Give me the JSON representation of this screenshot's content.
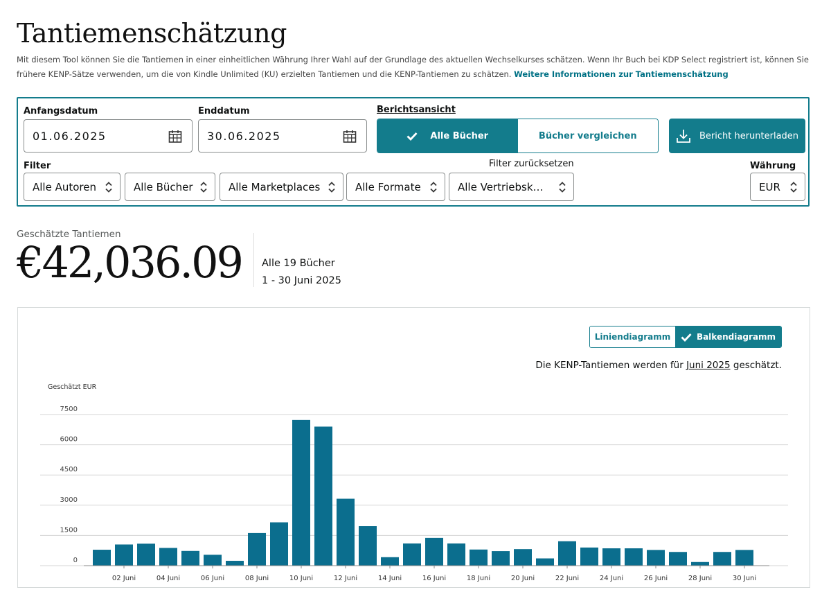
{
  "page": {
    "title": "Tantiemenschätzung",
    "intro": "Mit diesem Tool können Sie die Tantiemen in einer einheitlichen Währung Ihrer Wahl auf der Grundlage des aktuellen Wechselkurses schätzen. Wenn Ihr Buch bei KDP Select registriert ist, können Sie frühere KENP-Sätze verwenden, um die von Kindle Unlimited (KU) erzielten Tantiemen und die KENP-Tantiemen zu schätzen.",
    "intro_link": "Weitere Informationen zur Tantiemenschätzung"
  },
  "filters": {
    "start_label": "Anfangsdatum",
    "start_value": "01.06.2025",
    "end_label": "Enddatum",
    "end_value": "30.06.2025",
    "report_view_label": "Berichtsansicht",
    "view_all": "Alle Bücher",
    "view_compare": "Bücher vergleichen",
    "download": "Bericht herunterladen",
    "filter_label": "Filter",
    "reset": "Filter zurücksetzen",
    "currency_label": "Währung",
    "authors": "Alle Autoren",
    "books": "Alle Bücher",
    "marketplaces": "Alle Marketplaces",
    "formats": "Alle Formate",
    "channels": "Alle Vertriebsk…",
    "currency": "EUR"
  },
  "summary": {
    "label": "Geschätzte Tantiemen",
    "value": "€42,036.09",
    "books": "Alle 19 Bücher",
    "range": "1 - 30 Juni 2025"
  },
  "chart": {
    "toggle_line": "Liniendiagramm",
    "toggle_bar": "Balkendiagramm",
    "note_prefix": "Die KENP-Tantiemen werden für ",
    "note_link": "Juni 2025",
    "note_suffix": " geschätzt.",
    "bar_color": "#0b6e8e",
    "accent": "#137c8c"
  },
  "chart_data": {
    "type": "bar",
    "title": "",
    "xlabel": "",
    "ylabel": "Geschätzt EUR",
    "ylim": [
      0,
      7500
    ],
    "yticks": [
      0,
      1500,
      3000,
      4500,
      6000,
      7500
    ],
    "grid": true,
    "categories": [
      "01 Juni",
      "02 Juni",
      "03 Juni",
      "04 Juni",
      "05 Juni",
      "06 Juni",
      "07 Juni",
      "08 Juni",
      "09 Juni",
      "10 Juni",
      "11 Juni",
      "12 Juni",
      "13 Juni",
      "14 Juni",
      "15 Juni",
      "16 Juni",
      "17 Juni",
      "18 Juni",
      "19 Juni",
      "20 Juni",
      "21 Juni",
      "22 Juni",
      "23 Juni",
      "24 Juni",
      "25 Juni",
      "26 Juni",
      "27 Juni",
      "28 Juni",
      "29 Juni",
      "30 Juni"
    ],
    "tick_labels": [
      "02 Juni",
      "04 Juni",
      "06 Juni",
      "08 Juni",
      "10 Juni",
      "12 Juni",
      "14 Juni",
      "16 Juni",
      "18 Juni",
      "20 Juni",
      "22 Juni",
      "24 Juni",
      "26 Juni",
      "28 Juni",
      "30 Juni"
    ],
    "values": [
      790,
      1050,
      1090,
      880,
      730,
      540,
      240,
      1620,
      2150,
      7230,
      6900,
      3320,
      1960,
      420,
      1100,
      1380,
      1100,
      800,
      720,
      820,
      360,
      1210,
      900,
      860,
      860,
      780,
      680,
      180,
      680,
      780
    ]
  }
}
